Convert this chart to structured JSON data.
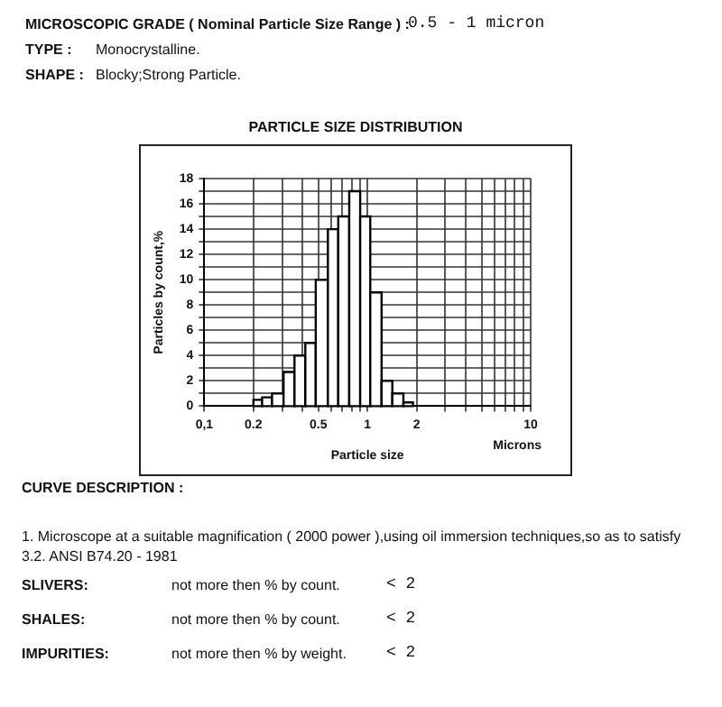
{
  "chart_data": {
    "type": "histogram",
    "title": "PARTICLE SIZE DISTRIBUTION",
    "xlabel": "Particle size",
    "ylabel": "Particles by count,%",
    "bins": [
      0.2,
      0.226,
      0.26,
      0.306,
      0.357,
      0.416,
      0.482,
      0.572,
      0.662,
      0.773,
      0.902,
      1.04,
      1.22,
      1.42,
      1.66,
      1.9
    ],
    "values": [
      0.5,
      0.7,
      1,
      2.7,
      4,
      5,
      10,
      14,
      15,
      17,
      15,
      9,
      2,
      1,
      0.3
    ],
    "color": "#ffffff",
    "log": "x",
    "grid": true,
    "legend": false,
    "xlim": [
      0.1,
      10
    ],
    "xticks": [
      {
        "value": 0.1,
        "label": "0,1"
      },
      0.2,
      {
        "value": 0.3,
        "label": null
      },
      {
        "value": 0.4,
        "label": null
      },
      0.5,
      {
        "value": 0.6,
        "label": null
      },
      {
        "value": 0.7,
        "label": null
      },
      {
        "value": 0.8,
        "label": null
      },
      {
        "value": 0.9,
        "label": null
      },
      1,
      2,
      {
        "value": 3,
        "label": null
      },
      {
        "value": 4,
        "label": null
      },
      {
        "value": 5,
        "label": null
      },
      {
        "value": 6,
        "label": null
      },
      {
        "value": 7,
        "label": null
      },
      {
        "value": 8,
        "label": null
      },
      {
        "value": 9,
        "label": null
      },
      10
    ],
    "ylim": [
      0,
      18
    ],
    "yticks": [
      0,
      {
        "value": 1,
        "label": null
      },
      2,
      {
        "value": 3,
        "label": null
      },
      4,
      {
        "value": 5,
        "label": null
      },
      6,
      {
        "value": 7,
        "label": null
      },
      8,
      {
        "value": 9,
        "label": null
      },
      10,
      {
        "value": 11,
        "label": null
      },
      12,
      {
        "value": 13,
        "label": null
      },
      14,
      {
        "value": 15,
        "label": null
      },
      16,
      {
        "value": 17,
        "label": null
      },
      18
    ],
    "annotations": [
      "MICROSCOPIC GRADE ( Nominal Particle Size Range ) :",
      "0.5 - 1 micron",
      "TYPE :",
      "Monocrystalline.",
      "SHAPE :",
      "Blocky;Strong Particle.",
      "Microns",
      "CURVE DESCRIPTION :",
      "1. Microscope at a suitable magnification ( 2000 power ),using oil immersion techniques,so as to satisfy 3.2. ANSI B74.20 - 1981",
      "SLIVERS:",
      "not more then  % by count.",
      "< 2",
      "SHALES:",
      "not more then  % by count.",
      "< 2",
      "IMPURITIES:",
      "not more then  % by weight.",
      "< 2"
    ]
  }
}
